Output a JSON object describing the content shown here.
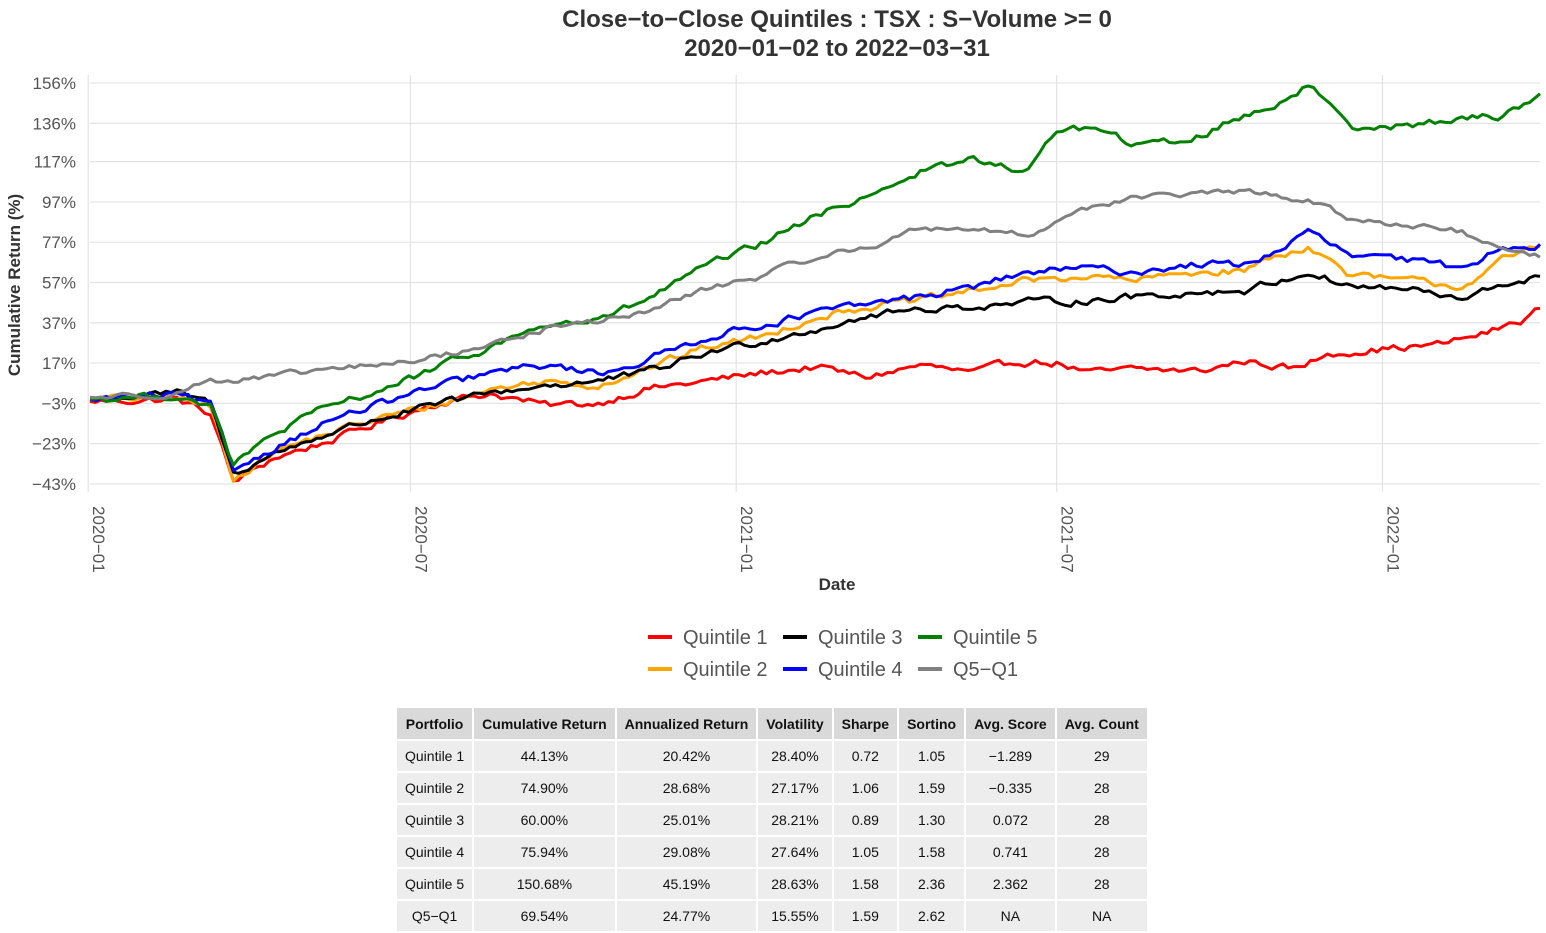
{
  "chart_data": {
    "type": "line",
    "title": "Close−to−Close Quintiles : TSX : S−Volume >= 0",
    "subtitle": "2020−01−02 to 2022−03−31",
    "xlabel": "Date",
    "ylabel": "Cumulative Return (%)",
    "xlim": [
      "2020-01-02",
      "2022-03-31"
    ],
    "ylim": [
      -47,
      160
    ],
    "y_ticks": [
      "156%",
      "136%",
      "117%",
      "97%",
      "77%",
      "57%",
      "37%",
      "17%",
      "−3%",
      "−23%",
      "−43%"
    ],
    "x_ticks": [
      "2020−01",
      "2020−07",
      "2021−01",
      "2021−07",
      "2022−01"
    ],
    "grid": true,
    "legend_position": "bottom",
    "series": [
      {
        "name": "Quintile 1",
        "color": "#ff0000",
        "points": [
          [
            "2020-01-02",
            -2
          ],
          [
            "2020-02-20",
            -1
          ],
          [
            "2020-03-10",
            -8
          ],
          [
            "2020-03-23",
            -42
          ],
          [
            "2020-04-15",
            -30
          ],
          [
            "2020-05-15",
            -22
          ],
          [
            "2020-06-15",
            -12
          ],
          [
            "2020-07-15",
            -3
          ],
          [
            "2020-08-15",
            2
          ],
          [
            "2020-09-15",
            -4
          ],
          [
            "2020-10-15",
            -3
          ],
          [
            "2020-11-10",
            4
          ],
          [
            "2020-12-15",
            8
          ],
          [
            "2021-01-15",
            12
          ],
          [
            "2021-02-15",
            15
          ],
          [
            "2021-03-15",
            10
          ],
          [
            "2021-04-15",
            16
          ],
          [
            "2021-05-15",
            12
          ],
          [
            "2021-06-10",
            18
          ],
          [
            "2021-07-01",
            17
          ],
          [
            "2021-07-20",
            12
          ],
          [
            "2021-08-15",
            14
          ],
          [
            "2021-09-20",
            13
          ],
          [
            "2021-10-15",
            18
          ],
          [
            "2021-11-15",
            14
          ],
          [
            "2021-12-01",
            22
          ],
          [
            "2022-01-01",
            24
          ],
          [
            "2022-02-01",
            26
          ],
          [
            "2022-03-01",
            32
          ],
          [
            "2022-03-20",
            38
          ],
          [
            "2022-03-31",
            44.13
          ]
        ]
      },
      {
        "name": "Quintile 2",
        "color": "#ffa500",
        "points": [
          [
            "2020-01-02",
            -1
          ],
          [
            "2020-02-20",
            0
          ],
          [
            "2020-03-10",
            -5
          ],
          [
            "2020-03-23",
            -40
          ],
          [
            "2020-04-15",
            -27
          ],
          [
            "2020-05-15",
            -18
          ],
          [
            "2020-06-15",
            -10
          ],
          [
            "2020-07-15",
            -4
          ],
          [
            "2020-08-15",
            4
          ],
          [
            "2020-09-15",
            8
          ],
          [
            "2020-10-15",
            6
          ],
          [
            "2020-11-10",
            14
          ],
          [
            "2020-12-15",
            25
          ],
          [
            "2021-01-15",
            30
          ],
          [
            "2021-02-15",
            40
          ],
          [
            "2021-03-15",
            45
          ],
          [
            "2021-04-15",
            48
          ],
          [
            "2021-05-15",
            53
          ],
          [
            "2021-06-15",
            58
          ],
          [
            "2021-07-15",
            60
          ],
          [
            "2021-08-15",
            58
          ],
          [
            "2021-09-15",
            62
          ],
          [
            "2021-10-15",
            63
          ],
          [
            "2021-11-01",
            70
          ],
          [
            "2021-11-20",
            75
          ],
          [
            "2021-12-15",
            60
          ],
          [
            "2022-01-15",
            58
          ],
          [
            "2022-02-15",
            55
          ],
          [
            "2022-03-10",
            68
          ],
          [
            "2022-03-31",
            74.9
          ]
        ]
      },
      {
        "name": "Quintile 3",
        "color": "#000000",
        "points": [
          [
            "2020-01-02",
            -1
          ],
          [
            "2020-02-20",
            2
          ],
          [
            "2020-03-10",
            -3
          ],
          [
            "2020-03-23",
            -38
          ],
          [
            "2020-04-15",
            -28
          ],
          [
            "2020-05-15",
            -18
          ],
          [
            "2020-06-15",
            -10
          ],
          [
            "2020-07-15",
            -4
          ],
          [
            "2020-08-15",
            2
          ],
          [
            "2020-09-15",
            6
          ],
          [
            "2020-10-15",
            8
          ],
          [
            "2020-11-10",
            12
          ],
          [
            "2020-12-15",
            22
          ],
          [
            "2021-01-15",
            28
          ],
          [
            "2021-02-15",
            34
          ],
          [
            "2021-03-15",
            40
          ],
          [
            "2021-04-15",
            44
          ],
          [
            "2021-05-15",
            45
          ],
          [
            "2021-06-15",
            47
          ],
          [
            "2021-07-15",
            48
          ],
          [
            "2021-08-15",
            50
          ],
          [
            "2021-09-15",
            52
          ],
          [
            "2021-10-15",
            53
          ],
          [
            "2021-11-20",
            62
          ],
          [
            "2021-12-15",
            55
          ],
          [
            "2022-01-15",
            54
          ],
          [
            "2022-02-15",
            48
          ],
          [
            "2022-03-10",
            56
          ],
          [
            "2022-03-31",
            60
          ]
        ]
      },
      {
        "name": "Quintile 4",
        "color": "#0000ff",
        "points": [
          [
            "2020-01-02",
            -1
          ],
          [
            "2020-02-20",
            1
          ],
          [
            "2020-03-10",
            -4
          ],
          [
            "2020-03-23",
            -36
          ],
          [
            "2020-04-15",
            -25
          ],
          [
            "2020-05-15",
            -12
          ],
          [
            "2020-06-15",
            -3
          ],
          [
            "2020-07-15",
            5
          ],
          [
            "2020-08-15",
            12
          ],
          [
            "2020-09-15",
            16
          ],
          [
            "2020-10-15",
            12
          ],
          [
            "2020-11-10",
            18
          ],
          [
            "2020-12-15",
            30
          ],
          [
            "2021-01-15",
            36
          ],
          [
            "2021-02-15",
            42
          ],
          [
            "2021-03-15",
            46
          ],
          [
            "2021-04-15",
            50
          ],
          [
            "2021-05-15",
            55
          ],
          [
            "2021-06-15",
            62
          ],
          [
            "2021-07-15",
            64
          ],
          [
            "2021-08-15",
            62
          ],
          [
            "2021-09-15",
            66
          ],
          [
            "2021-10-15",
            66
          ],
          [
            "2021-11-01",
            72
          ],
          [
            "2021-11-20",
            82
          ],
          [
            "2021-12-15",
            70
          ],
          [
            "2022-01-15",
            68
          ],
          [
            "2022-02-15",
            64
          ],
          [
            "2022-03-10",
            75
          ],
          [
            "2022-03-31",
            75.94
          ]
        ]
      },
      {
        "name": "Quintile 5",
        "color": "#008000",
        "points": [
          [
            "2020-01-02",
            -1
          ],
          [
            "2020-02-20",
            1
          ],
          [
            "2020-03-10",
            -4
          ],
          [
            "2020-03-23",
            -34
          ],
          [
            "2020-04-15",
            -18
          ],
          [
            "2020-05-15",
            -5
          ],
          [
            "2020-06-15",
            4
          ],
          [
            "2020-07-15",
            14
          ],
          [
            "2020-08-15",
            25
          ],
          [
            "2020-09-15",
            36
          ],
          [
            "2020-10-15",
            38
          ],
          [
            "2020-11-10",
            48
          ],
          [
            "2020-12-15",
            65
          ],
          [
            "2021-01-15",
            76
          ],
          [
            "2021-02-15",
            90
          ],
          [
            "2021-03-15",
            100
          ],
          [
            "2021-04-15",
            112
          ],
          [
            "2021-05-15",
            118
          ],
          [
            "2021-06-15",
            112
          ],
          [
            "2021-07-01",
            133
          ],
          [
            "2021-07-20",
            134
          ],
          [
            "2021-08-15",
            125
          ],
          [
            "2021-09-15",
            128
          ],
          [
            "2021-10-15",
            140
          ],
          [
            "2021-11-01",
            145
          ],
          [
            "2021-11-20",
            155
          ],
          [
            "2021-12-15",
            135
          ],
          [
            "2022-01-15",
            135
          ],
          [
            "2022-02-15",
            138
          ],
          [
            "2022-03-10",
            140
          ],
          [
            "2022-03-31",
            150.68
          ]
        ]
      },
      {
        "name": "Q5−Q1",
        "color": "#808080",
        "points": [
          [
            "2020-01-02",
            0
          ],
          [
            "2020-02-20",
            2
          ],
          [
            "2020-03-10",
            9
          ],
          [
            "2020-03-23",
            8
          ],
          [
            "2020-04-15",
            10
          ],
          [
            "2020-05-15",
            14
          ],
          [
            "2020-06-15",
            16
          ],
          [
            "2020-07-15",
            20
          ],
          [
            "2020-08-15",
            26
          ],
          [
            "2020-09-15",
            34
          ],
          [
            "2020-10-15",
            38
          ],
          [
            "2020-11-10",
            42
          ],
          [
            "2020-12-15",
            54
          ],
          [
            "2021-01-15",
            60
          ],
          [
            "2021-02-15",
            70
          ],
          [
            "2021-03-15",
            74
          ],
          [
            "2021-04-15",
            84
          ],
          [
            "2021-05-15",
            84
          ],
          [
            "2021-06-15",
            80
          ],
          [
            "2021-07-15",
            94
          ],
          [
            "2021-08-15",
            99
          ],
          [
            "2021-09-15",
            101
          ],
          [
            "2021-10-15",
            102
          ],
          [
            "2021-11-20",
            98
          ],
          [
            "2021-12-15",
            88
          ],
          [
            "2022-01-15",
            86
          ],
          [
            "2022-02-15",
            82
          ],
          [
            "2022-03-10",
            72
          ],
          [
            "2022-03-31",
            69.54
          ]
        ]
      }
    ]
  },
  "table": {
    "columns": [
      "Portfolio",
      "Cumulative Return",
      "Annualized Return",
      "Volatility",
      "Sharpe",
      "Sortino",
      "Avg. Score",
      "Avg. Count"
    ],
    "rows": [
      [
        "Quintile 1",
        "44.13%",
        "20.42%",
        "28.40%",
        "0.72",
        "1.05",
        "−1.289",
        "29"
      ],
      [
        "Quintile 2",
        "74.90%",
        "28.68%",
        "27.17%",
        "1.06",
        "1.59",
        "−0.335",
        "28"
      ],
      [
        "Quintile 3",
        "60.00%",
        "25.01%",
        "28.21%",
        "0.89",
        "1.30",
        "0.072",
        "28"
      ],
      [
        "Quintile 4",
        "75.94%",
        "29.08%",
        "27.64%",
        "1.05",
        "1.58",
        "0.741",
        "28"
      ],
      [
        "Quintile 5",
        "150.68%",
        "45.19%",
        "28.63%",
        "1.58",
        "2.36",
        "2.362",
        "28"
      ],
      [
        "Q5−Q1",
        "69.54%",
        "24.77%",
        "15.55%",
        "1.59",
        "2.62",
        "NA",
        "NA"
      ]
    ]
  }
}
